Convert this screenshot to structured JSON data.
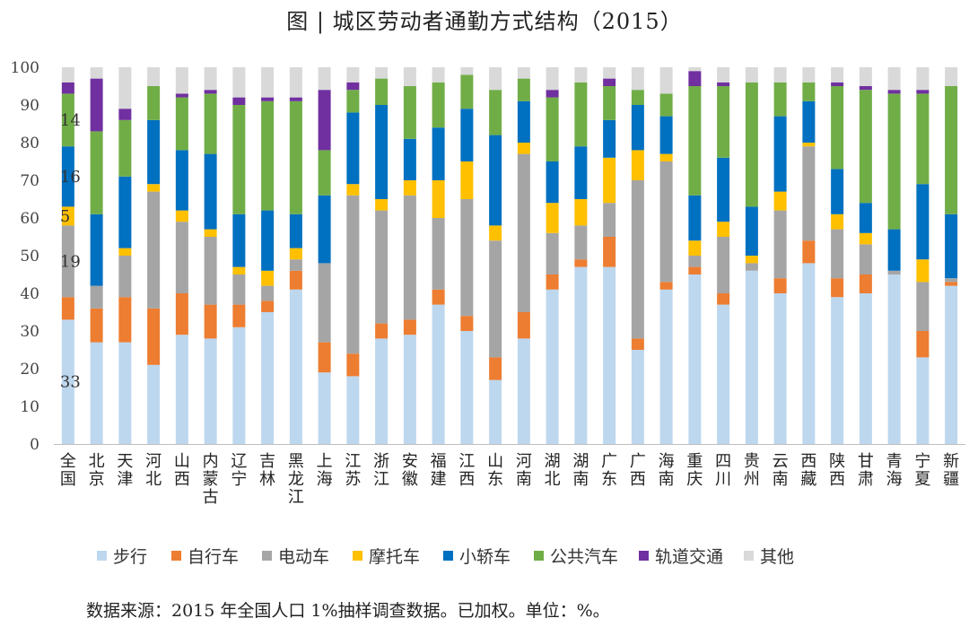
{
  "chart_data": {
    "type": "bar",
    "stacked": true,
    "title": "图 | 城区劳动者通勤方式结构（2015）",
    "ylim": [
      0,
      100
    ],
    "yticks": [
      0,
      10,
      20,
      30,
      40,
      50,
      60,
      70,
      80,
      90,
      100
    ],
    "grid": false,
    "legend_position": "bottom",
    "categories": [
      "全国",
      "北京",
      "天津",
      "河北",
      "山西",
      "内蒙古",
      "辽宁",
      "吉林",
      "黑龙江",
      "上海",
      "江苏",
      "浙江",
      "安徽",
      "福建",
      "江西",
      "山东",
      "河南",
      "湖北",
      "湖南",
      "广东",
      "广西",
      "海南",
      "重庆",
      "四川",
      "贵州",
      "云南",
      "西藏",
      "陕西",
      "甘肃",
      "青海",
      "宁夏",
      "新疆"
    ],
    "series": [
      {
        "name": "步行",
        "color": "#bdd7ee",
        "values": [
          33,
          27,
          27,
          21,
          29,
          28,
          31,
          35,
          41,
          19,
          18,
          28,
          29,
          37,
          30,
          17,
          28,
          41,
          47,
          47,
          25,
          41,
          45,
          37,
          46,
          40,
          48,
          39,
          40,
          45,
          23,
          42
        ]
      },
      {
        "name": "自行车",
        "color": "#ed7d31",
        "values": [
          6,
          9,
          12,
          15,
          11,
          9,
          6,
          3,
          5,
          8,
          6,
          4,
          4,
          4,
          4,
          6,
          7,
          4,
          2,
          8,
          3,
          2,
          2,
          3,
          0,
          4,
          6,
          5,
          5,
          0,
          7,
          1
        ]
      },
      {
        "name": "电动车",
        "color": "#a5a5a5",
        "values": [
          19,
          6,
          11,
          31,
          19,
          18,
          8,
          4,
          3,
          21,
          42,
          30,
          33,
          19,
          31,
          31,
          42,
          11,
          9,
          9,
          42,
          32,
          3,
          15,
          2,
          18,
          25,
          13,
          8,
          1,
          13,
          1
        ]
      },
      {
        "name": "摩托车",
        "color": "#ffc000",
        "values": [
          5,
          0,
          2,
          2,
          3,
          2,
          2,
          4,
          3,
          0,
          3,
          3,
          4,
          10,
          10,
          4,
          3,
          8,
          7,
          12,
          8,
          2,
          4,
          4,
          2,
          5,
          1,
          4,
          3,
          0,
          6,
          0
        ]
      },
      {
        "name": "小轿车",
        "color": "#0070c0",
        "values": [
          16,
          19,
          19,
          17,
          16,
          20,
          14,
          16,
          9,
          18,
          19,
          25,
          11,
          14,
          14,
          24,
          11,
          11,
          14,
          10,
          12,
          10,
          12,
          17,
          13,
          20,
          11,
          12,
          8,
          11,
          20,
          17
        ]
      },
      {
        "name": "公共汽车",
        "color": "#70ad47",
        "values": [
          14,
          22,
          15,
          9,
          14,
          16,
          29,
          29,
          30,
          12,
          6,
          7,
          14,
          12,
          9,
          12,
          6,
          17,
          17,
          9,
          4,
          6,
          29,
          19,
          33,
          9,
          5,
          22,
          30,
          36,
          24,
          34
        ]
      },
      {
        "name": "轨道交通",
        "color": "#7030a0",
        "values": [
          3,
          14,
          3,
          0,
          1,
          1,
          2,
          1,
          1,
          16,
          2,
          0,
          0,
          0,
          0,
          0,
          0,
          2,
          0,
          2,
          0,
          0,
          4,
          1,
          0,
          0,
          0,
          1,
          1,
          1,
          1,
          0
        ]
      },
      {
        "name": "其他",
        "color": "#d9d9d9",
        "values": [
          4,
          3,
          11,
          5,
          7,
          6,
          8,
          8,
          8,
          6,
          4,
          3,
          5,
          4,
          2,
          6,
          3,
          6,
          4,
          3,
          6,
          7,
          1,
          4,
          4,
          4,
          4,
          4,
          5,
          6,
          6,
          5
        ]
      }
    ],
    "annotations": [
      {
        "category": "全国",
        "series": "步行",
        "label": "33"
      },
      {
        "category": "全国",
        "series": "电动车",
        "label": "19"
      },
      {
        "category": "全国",
        "series": "摩托车",
        "label": "5"
      },
      {
        "category": "全国",
        "series": "小轿车",
        "label": "16"
      },
      {
        "category": "全国",
        "series": "公共汽车",
        "label": "14"
      }
    ],
    "source_note": "数据来源：2015 年全国人口 1%抽样调查数据。已加权。单位：%。"
  }
}
